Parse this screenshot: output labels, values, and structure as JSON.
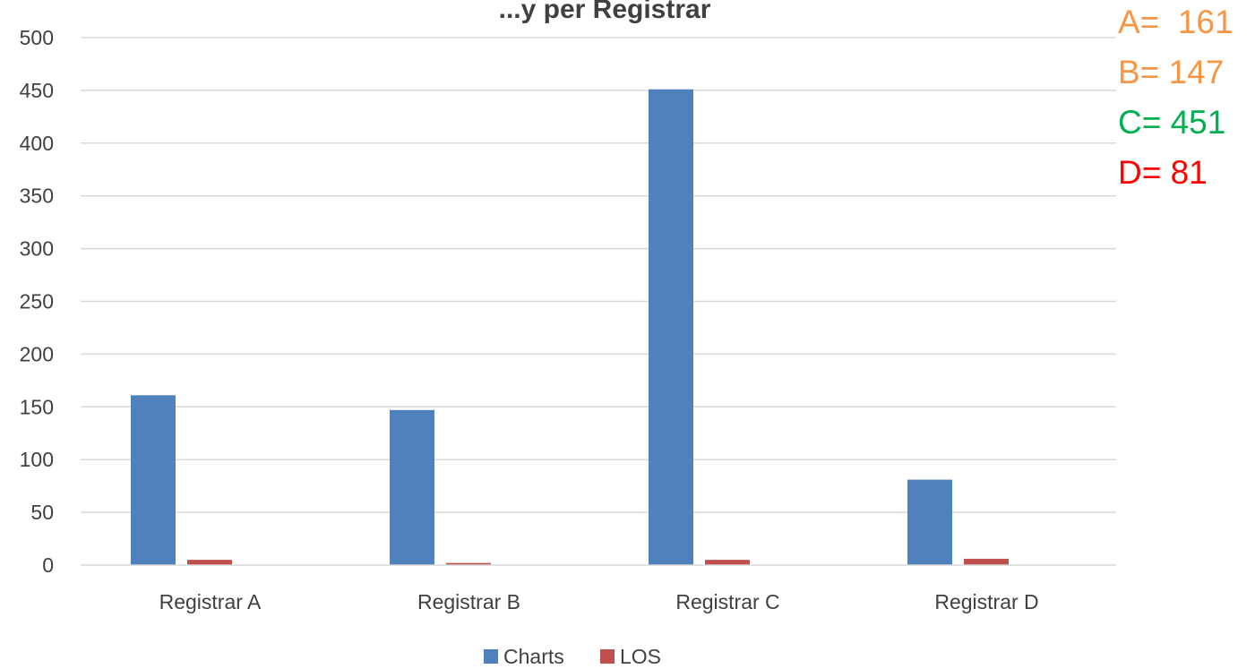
{
  "chart_data": {
    "type": "bar",
    "title": "...y per Registrar",
    "categories": [
      "Registrar A",
      "Registrar B",
      "Registrar C",
      "Registrar D"
    ],
    "series": [
      {
        "name": "Charts",
        "values": [
          161,
          147,
          451,
          81
        ],
        "color": "#4f81bd"
      },
      {
        "name": "LOS",
        "values": [
          5,
          2,
          5,
          6
        ],
        "color": "#c0504d"
      }
    ],
    "ylim": [
      0,
      500
    ],
    "yticks": [
      0,
      50,
      100,
      150,
      200,
      250,
      300,
      350,
      400,
      450,
      500
    ],
    "grid": true,
    "legend": "bottom",
    "annotations": [
      {
        "text": "A=  161",
        "color": "#f79646"
      },
      {
        "text": "B= 147",
        "color": "#f79646"
      },
      {
        "text": "C= 451",
        "color": "#00b050"
      },
      {
        "text": "D= 81",
        "color": "#ff0000"
      }
    ]
  }
}
